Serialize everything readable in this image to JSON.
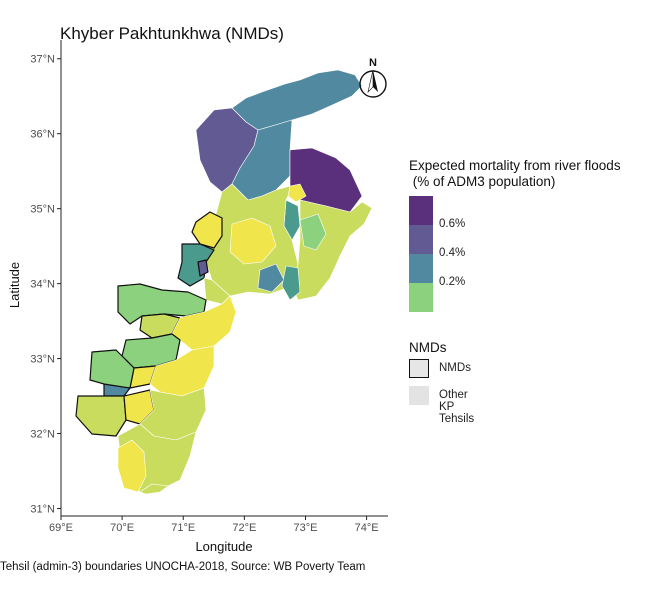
{
  "title": "Khyber Pakhtunkhwa (NMDs)",
  "axes": {
    "x_title": "Longitude",
    "y_title": "Latitude",
    "x_ticks": [
      "69°E",
      "70°E",
      "71°E",
      "72°E",
      "73°E",
      "74°E"
    ],
    "y_ticks": [
      "31°N",
      "32°N",
      "33°N",
      "34°N",
      "35°N",
      "36°N",
      "37°N"
    ],
    "x_range": [
      69,
      74.35
    ],
    "y_range": [
      30.9,
      37.25
    ]
  },
  "north_arrow": {
    "label": "N"
  },
  "legend": {
    "title": "Expected mortality from river floods\n (% of ADM3 population)",
    "colors": [
      "#5a2f7c",
      "#625a92",
      "#5189a0",
      "#8bd17e"
    ],
    "ticks": [
      "0.6%",
      "0.4%",
      "0.2%"
    ]
  },
  "nmd_legend": {
    "title": "NMDs",
    "items": [
      {
        "label": "NMDs",
        "style": "outlined"
      },
      {
        "label": "Other KP Tehsils",
        "style": "plain"
      }
    ]
  },
  "palette": {
    "very_high": "#5a2f7c",
    "high": "#625a92",
    "mid": "#5189a0",
    "low_mid": "#4a9b8e",
    "low": "#8bd17e",
    "very_low": "#c9dc5e",
    "min": "#f0e54a"
  },
  "caption": "Tehsil (admin-3) boundaries UNOCHA-2018, Source: WB Poverty Team"
}
